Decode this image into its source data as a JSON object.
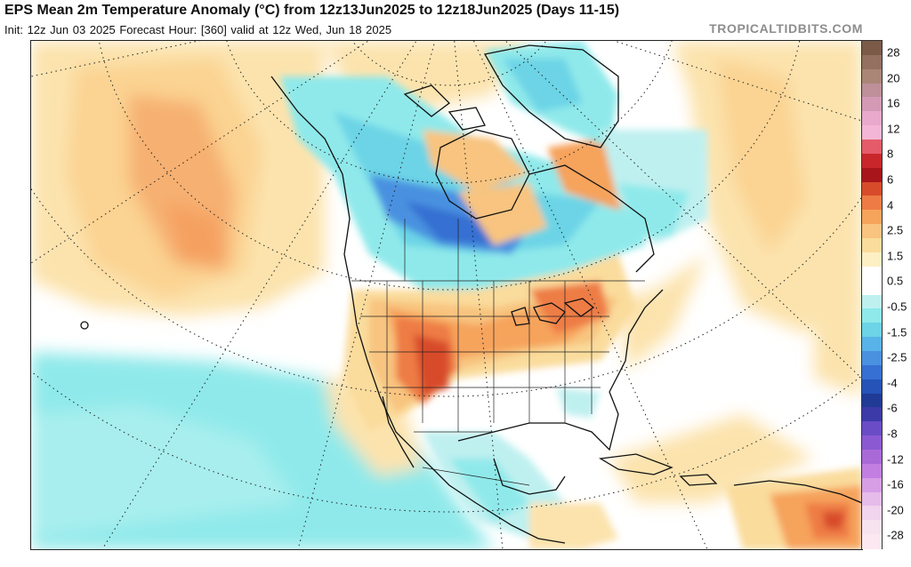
{
  "header": {
    "title": "EPS Mean 2m Temperature Anomaly (°C) from 12z13Jun2025 to 12z18Jun2025 (Days 11-15)",
    "subtitle": "Init: 12z Jun 03 2025   Forecast Hour: [360]   valid at 12z Wed, Jun 18 2025",
    "brand": "TROPICALTIDBITS.COM"
  },
  "map": {
    "projection": "polar stereographic",
    "region": "North America"
  },
  "colorbar": {
    "labels": [
      "28",
      "20",
      "16",
      "12",
      "8",
      "6",
      "4",
      "2.5",
      "1.5",
      "0.5",
      "-0.5",
      "-1.5",
      "-2.5",
      "-4",
      "-6",
      "-8",
      "-12",
      "-16",
      "-20",
      "-28"
    ],
    "colors": [
      "#7b5a48",
      "#93705f",
      "#a98676",
      "#bf8f9a",
      "#d49ab5",
      "#e8a9cc",
      "#f4b6d6",
      "#e45b6a",
      "#c9262c",
      "#a8151b",
      "#d84b2a",
      "#ee7b45",
      "#f6a35c",
      "#f8c47f",
      "#fadc9c",
      "#fdf0c4",
      "#ffffff",
      "#ffffff",
      "#bff0f0",
      "#8fe9ea",
      "#6cd4e6",
      "#58b3e8",
      "#4a91e0",
      "#3570d2",
      "#2553b8",
      "#203a96",
      "#3b3aa8",
      "#6a4cc6",
      "#8b5ad2",
      "#a96ad8",
      "#c27ee0",
      "#d79ee6",
      "#e6bcea",
      "#f1d4ee",
      "#f7e2f0",
      "#fbe8f0"
    ]
  }
}
